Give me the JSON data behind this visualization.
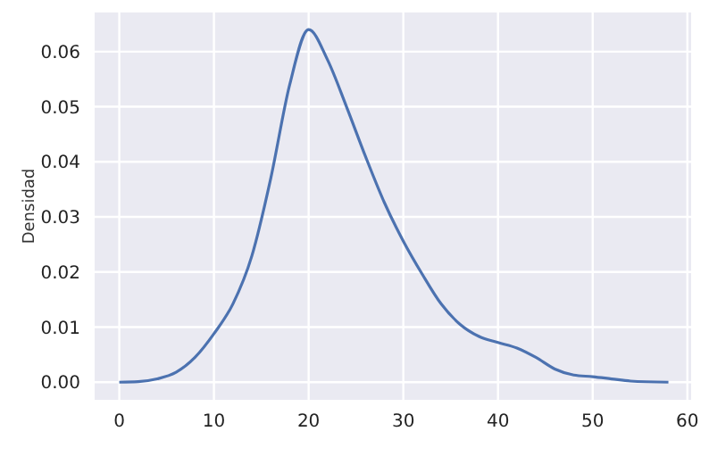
{
  "chart_data": {
    "type": "line",
    "ylabel": "Densidad",
    "x": [
      0,
      2,
      4,
      6,
      8,
      10,
      12,
      14,
      16,
      18,
      20,
      22,
      24,
      26,
      28,
      30,
      32,
      34,
      36,
      38,
      40,
      42,
      44,
      46,
      48,
      50,
      52,
      54,
      58
    ],
    "values": [
      0,
      0.0001,
      0.0006,
      0.0018,
      0.0045,
      0.0088,
      0.0142,
      0.0229,
      0.037,
      0.054,
      0.064,
      0.0585,
      0.05,
      0.041,
      0.0326,
      0.0256,
      0.0196,
      0.0142,
      0.0105,
      0.0083,
      0.0072,
      0.0062,
      0.0045,
      0.0024,
      0.0013,
      0.001,
      0.0006,
      0.0002,
      0
    ],
    "color": "#4c72b0",
    "xlim": [
      -2.6,
      60.4
    ],
    "xticks": [
      0,
      10,
      20,
      30,
      40,
      50,
      60
    ],
    "ylim": [
      -0.0032,
      0.0671
    ],
    "yticks": [
      {
        "value": 0,
        "label": "0.00"
      },
      0.01,
      0.02,
      0.03,
      0.04,
      0.05,
      0.06
    ],
    "grid": true,
    "marker": "none",
    "line_style": "solid"
  }
}
